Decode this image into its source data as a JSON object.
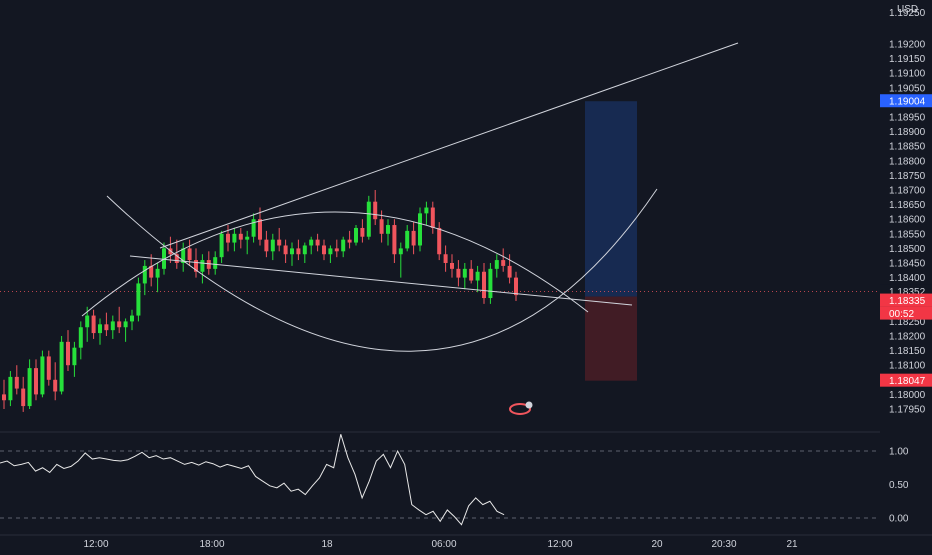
{
  "currency": "USD",
  "colors": {
    "background": "#131722",
    "up": "#26e03b",
    "down": "#f0555d",
    "tp_label": "#2962ff",
    "sl_label": "#f23645",
    "current_label": "#f23645",
    "line": "#d1d4dc",
    "target_zone": "#1c3a78",
    "stop_zone": "#5a1e28"
  },
  "price_axis": {
    "ticks": [
      "1.19200",
      "1.19150",
      "1.19100",
      "1.19050",
      "1.18950",
      "1.18900",
      "1.18850",
      "1.18800",
      "1.18750",
      "1.18700",
      "1.18650",
      "1.18600",
      "1.18550",
      "1.18500",
      "1.18450",
      "1.18400",
      "1.18250",
      "1.18200",
      "1.18150",
      "1.18100",
      "1.18000",
      "1.17950"
    ],
    "tick_values": [
      1.192,
      1.1915,
      1.191,
      1.1905,
      1.1895,
      1.189,
      1.1885,
      1.188,
      1.1875,
      1.187,
      1.1865,
      1.186,
      1.1855,
      1.185,
      1.1845,
      1.184,
      1.1825,
      1.182,
      1.1815,
      1.181,
      1.18,
      1.1795
    ],
    "top_partial": "1.19250",
    "badges": {
      "target": {
        "text": "1.19004",
        "value": 1.19004
      },
      "price_line": {
        "text": "1.18352",
        "value": 1.18352
      },
      "current": {
        "text": "1.18335",
        "value": 1.18335
      },
      "countdown": {
        "text": "00:52"
      },
      "stop": {
        "text": "1.18047",
        "value": 1.18047
      }
    }
  },
  "indicator_axis": {
    "ticks": [
      "1.00",
      "0.50",
      "0.00"
    ],
    "tick_values": [
      1.0,
      0.5,
      0.0
    ]
  },
  "time_axis": {
    "labels": [
      "12:00",
      "18:00",
      "18",
      "06:00",
      "12:00",
      "20",
      "20:30",
      "21"
    ]
  },
  "chart_data": {
    "type": "candlestick",
    "symbol_currency": "USD",
    "note_none": "",
    "candles": [
      [
        1.18,
        1.1805,
        1.1795,
        1.1798
      ],
      [
        1.1798,
        1.1808,
        1.1796,
        1.1806
      ],
      [
        1.1806,
        1.181,
        1.18,
        1.1802
      ],
      [
        1.1802,
        1.1806,
        1.1794,
        1.1796
      ],
      [
        1.1796,
        1.1812,
        1.1795,
        1.1809
      ],
      [
        1.1809,
        1.1812,
        1.1798,
        1.18
      ],
      [
        1.18,
        1.1815,
        1.1799,
        1.1813
      ],
      [
        1.1813,
        1.1815,
        1.1803,
        1.1805
      ],
      [
        1.1805,
        1.1811,
        1.1798,
        1.1801
      ],
      [
        1.1801,
        1.182,
        1.18,
        1.1818
      ],
      [
        1.1818,
        1.1822,
        1.1808,
        1.181
      ],
      [
        1.181,
        1.1818,
        1.1806,
        1.1816
      ],
      [
        1.1816,
        1.1825,
        1.1812,
        1.1823
      ],
      [
        1.1823,
        1.183,
        1.1818,
        1.1827
      ],
      [
        1.1827,
        1.1829,
        1.1819,
        1.1821
      ],
      [
        1.1821,
        1.1826,
        1.1817,
        1.1824
      ],
      [
        1.1824,
        1.1828,
        1.182,
        1.1822
      ],
      [
        1.1822,
        1.1827,
        1.1819,
        1.1825
      ],
      [
        1.1825,
        1.183,
        1.1821,
        1.1823
      ],
      [
        1.1823,
        1.1826,
        1.1818,
        1.1825
      ],
      [
        1.1825,
        1.1829,
        1.1822,
        1.1827
      ],
      [
        1.1827,
        1.184,
        1.1825,
        1.1838
      ],
      [
        1.1838,
        1.1846,
        1.1834,
        1.1844
      ],
      [
        1.1844,
        1.1848,
        1.1837,
        1.184
      ],
      [
        1.184,
        1.1845,
        1.1835,
        1.1843
      ],
      [
        1.1843,
        1.1852,
        1.1841,
        1.185
      ],
      [
        1.185,
        1.1854,
        1.1845,
        1.1848
      ],
      [
        1.1848,
        1.1853,
        1.1843,
        1.1845
      ],
      [
        1.1845,
        1.1852,
        1.1842,
        1.185
      ],
      [
        1.185,
        1.1853,
        1.1844,
        1.1846
      ],
      [
        1.1846,
        1.185,
        1.184,
        1.1842
      ],
      [
        1.1842,
        1.1848,
        1.1838,
        1.1846
      ],
      [
        1.1846,
        1.1849,
        1.1841,
        1.1843
      ],
      [
        1.1843,
        1.1849,
        1.1841,
        1.1847
      ],
      [
        1.1847,
        1.1856,
        1.1845,
        1.1855
      ],
      [
        1.1855,
        1.1858,
        1.1849,
        1.1852
      ],
      [
        1.1852,
        1.1857,
        1.1849,
        1.1855
      ],
      [
        1.1855,
        1.1857,
        1.185,
        1.1853
      ],
      [
        1.1853,
        1.1856,
        1.1848,
        1.1854
      ],
      [
        1.1854,
        1.1862,
        1.1852,
        1.186
      ],
      [
        1.186,
        1.1864,
        1.1851,
        1.1853
      ],
      [
        1.1853,
        1.1856,
        1.1847,
        1.1849
      ],
      [
        1.1849,
        1.1855,
        1.1846,
        1.1853
      ],
      [
        1.1853,
        1.1857,
        1.1849,
        1.1851
      ],
      [
        1.1851,
        1.1853,
        1.1845,
        1.1848
      ],
      [
        1.1848,
        1.1852,
        1.1844,
        1.185
      ],
      [
        1.185,
        1.1853,
        1.1846,
        1.1848
      ],
      [
        1.1848,
        1.1852,
        1.1845,
        1.1851
      ],
      [
        1.1851,
        1.1854,
        1.1848,
        1.1853
      ],
      [
        1.1853,
        1.1855,
        1.1849,
        1.1851
      ],
      [
        1.1851,
        1.1853,
        1.1846,
        1.1848
      ],
      [
        1.1848,
        1.1851,
        1.1845,
        1.185
      ],
      [
        1.185,
        1.1853,
        1.1847,
        1.1849
      ],
      [
        1.1849,
        1.1854,
        1.1847,
        1.1853
      ],
      [
        1.1853,
        1.1856,
        1.185,
        1.1852
      ],
      [
        1.1852,
        1.1858,
        1.1851,
        1.1857
      ],
      [
        1.1857,
        1.186,
        1.1852,
        1.1854
      ],
      [
        1.1854,
        1.1868,
        1.1853,
        1.1866
      ],
      [
        1.1866,
        1.187,
        1.1858,
        1.186
      ],
      [
        1.186,
        1.1863,
        1.1852,
        1.1855
      ],
      [
        1.1855,
        1.186,
        1.1851,
        1.1858
      ],
      [
        1.1858,
        1.186,
        1.1845,
        1.1848
      ],
      [
        1.1848,
        1.1852,
        1.184,
        1.185
      ],
      [
        1.185,
        1.1858,
        1.1849,
        1.1856
      ],
      [
        1.1856,
        1.1859,
        1.1848,
        1.1851
      ],
      [
        1.1851,
        1.1864,
        1.1849,
        1.1862
      ],
      [
        1.1862,
        1.1866,
        1.1858,
        1.1864
      ],
      [
        1.1864,
        1.1866,
        1.1855,
        1.1857
      ],
      [
        1.1857,
        1.1859,
        1.1846,
        1.1848
      ],
      [
        1.1848,
        1.1851,
        1.1842,
        1.1845
      ],
      [
        1.1845,
        1.1848,
        1.184,
        1.1843
      ],
      [
        1.1843,
        1.1846,
        1.1837,
        1.184
      ],
      [
        1.184,
        1.1845,
        1.1836,
        1.1843
      ],
      [
        1.1843,
        1.1846,
        1.1838,
        1.1839
      ],
      [
        1.1839,
        1.1844,
        1.1835,
        1.1842
      ],
      [
        1.1842,
        1.1845,
        1.1831,
        1.1833
      ],
      [
        1.1833,
        1.1845,
        1.1831,
        1.1843
      ],
      [
        1.1843,
        1.1848,
        1.184,
        1.1846
      ],
      [
        1.1846,
        1.185,
        1.1842,
        1.1844
      ],
      [
        1.1844,
        1.1848,
        1.1838,
        1.184
      ],
      [
        1.184,
        1.1842,
        1.1832,
        1.1834
      ]
    ]
  }
}
